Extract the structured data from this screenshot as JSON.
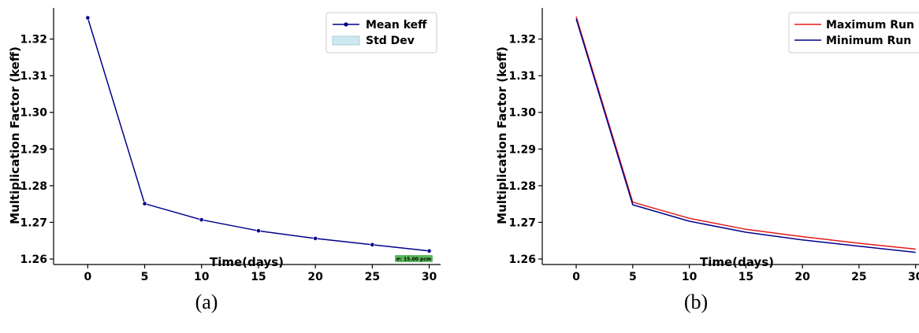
{
  "chart_data": [
    {
      "type": "line",
      "caption": "(a)",
      "xlabel": "Time(days)",
      "ylabel": "Multiplication Factor (keff)",
      "xlim": [
        -3,
        31
      ],
      "ylim": [
        1.2585,
        1.3285
      ],
      "xticks": [
        "0",
        "5",
        "10",
        "15",
        "20",
        "25",
        "30"
      ],
      "yticks": [
        "1.26",
        "1.27",
        "1.28",
        "1.29",
        "1.30",
        "1.31",
        "1.32"
      ],
      "legend_position": "top-right",
      "legend": [
        {
          "label": "Mean keff",
          "kind": "line-marker",
          "color": "#00008b"
        },
        {
          "label": "Std Dev",
          "kind": "patch",
          "color": "#add8e6"
        }
      ],
      "annotation": "σ: 15.00 pcm",
      "annotation_color": "#5cb85c",
      "series": [
        {
          "name": "Mean keff",
          "color": "#00008b",
          "markers": true,
          "x": [
            0,
            5,
            10,
            15,
            20,
            25,
            30
          ],
          "y": [
            1.3258,
            1.2751,
            1.2707,
            1.2677,
            1.2656,
            1.2639,
            1.2622
          ]
        }
      ]
    },
    {
      "type": "line",
      "caption": "(b)",
      "xlabel": "Time(days)",
      "ylabel": "Multiplication Factor (keff)",
      "xlim": [
        -3,
        30.3
      ],
      "ylim": [
        1.2585,
        1.3285
      ],
      "xticks": [
        "0",
        "5",
        "10",
        "15",
        "20",
        "25",
        "30"
      ],
      "yticks": [
        "1.26",
        "1.27",
        "1.28",
        "1.29",
        "1.30",
        "1.31",
        "1.32"
      ],
      "legend_position": "top-right",
      "legend": [
        {
          "label": "Maximum Run",
          "kind": "line",
          "color": "#e31a1c"
        },
        {
          "label": "Minimum Run",
          "kind": "line",
          "color": "#00008b"
        }
      ],
      "series": [
        {
          "name": "Maximum Run",
          "color": "#e31a1c",
          "markers": false,
          "x": [
            0,
            5,
            10,
            15,
            20,
            25,
            30
          ],
          "y": [
            1.3261,
            1.2755,
            1.2711,
            1.2681,
            1.2661,
            1.2643,
            1.2627
          ]
        },
        {
          "name": "Minimum Run",
          "color": "#00008b",
          "markers": false,
          "x": [
            0,
            5,
            10,
            15,
            20,
            25,
            30
          ],
          "y": [
            1.3255,
            1.2748,
            1.2703,
            1.2673,
            1.2652,
            1.2635,
            1.2618
          ]
        }
      ]
    }
  ]
}
